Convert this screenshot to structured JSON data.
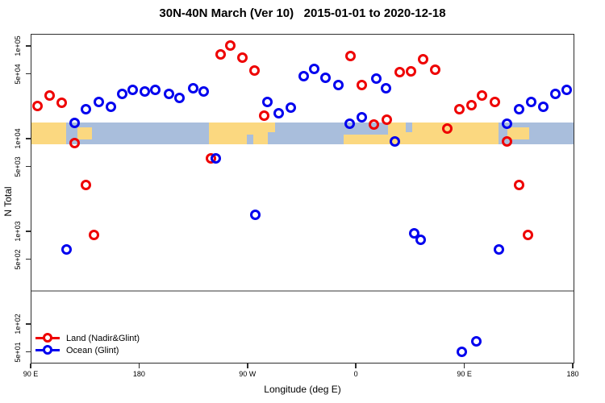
{
  "title": "30N-40N March (Ver 10)   2015-01-01 to 2020-12-18",
  "axes": {
    "xlabel": "Longitude (deg E)",
    "ylabel": "N Total"
  },
  "legend": {
    "items": [
      {
        "label": "Land (Nadir&Glint)",
        "color": "#ee0000"
      },
      {
        "label": "Ocean (Glint)",
        "color": "#0000ee"
      }
    ]
  },
  "chart_data": {
    "type": "scatter",
    "title": "30N-40N March (Ver 10)   2015-01-01 to 2020-12-18",
    "xlabel": "Longitude (deg E)",
    "ylabel": "N Total",
    "x_axis": {
      "note": "axis spans 450 deg of longitude starting at 90E, wrapping east: 90E>180>90W>0>90E>180",
      "span_deg": 450,
      "ticks": [
        {
          "t": 0,
          "label": "90 E"
        },
        {
          "t": 90,
          "label": "180"
        },
        {
          "t": 180,
          "label": "90 W"
        },
        {
          "t": 270,
          "label": "0"
        },
        {
          "t": 360,
          "label": "90 E"
        },
        {
          "t": 450,
          "label": "180"
        }
      ]
    },
    "y_axis": {
      "scale": "log10",
      "ticks": [
        {
          "value": 100000,
          "label": "1e+05"
        },
        {
          "value": 50000,
          "label": "5e+04"
        },
        {
          "value": 10000,
          "label": "1e+04"
        },
        {
          "value": 5000,
          "label": "5e+03"
        },
        {
          "value": 1000,
          "label": "1e+03"
        },
        {
          "value": 500,
          "label": "5e+02"
        },
        {
          "value": 100,
          "label": "1e+02"
        },
        {
          "value": 50,
          "label": "5e+01"
        }
      ]
    },
    "reference_line_value": 232,
    "map_band": {
      "value_top": 15100,
      "value_bottom": 8900,
      "ocean_color": "#a9bedc",
      "land_color": "#fbd880",
      "land_segments": [
        {
          "t0": 0,
          "t1": 29,
          "vpos": "full"
        },
        {
          "t0": 38,
          "t1": 50,
          "vpos": "mid"
        },
        {
          "t0": 147,
          "t1": 196,
          "vpos": "full"
        },
        {
          "t0": 196,
          "t1": 202,
          "vpos": "top"
        },
        {
          "t0": 259,
          "t1": 296,
          "vpos": "bottom"
        },
        {
          "t0": 296,
          "t1": 388,
          "vpos": "full"
        },
        {
          "t0": 395,
          "t1": 413,
          "vpos": "mid"
        }
      ],
      "ocean_patches": [
        {
          "t0": 179,
          "t1": 184,
          "vpos": "bottom"
        },
        {
          "t0": 311,
          "t1": 316,
          "vpos": "top"
        }
      ]
    },
    "series": [
      {
        "name": "Land (Nadir&Glint)",
        "color": "#ee0000",
        "points": [
          [
            5,
            23000
          ],
          [
            15,
            30000
          ],
          [
            25,
            25000
          ],
          [
            36,
            9200
          ],
          [
            45,
            3200
          ],
          [
            52,
            940
          ],
          [
            149,
            6300
          ],
          [
            157,
            82000
          ],
          [
            165,
            104000
          ],
          [
            175,
            77000
          ],
          [
            185,
            55000
          ],
          [
            193,
            18000
          ],
          [
            265,
            80000
          ],
          [
            274,
            39000
          ],
          [
            284,
            14600
          ],
          [
            295,
            16200
          ],
          [
            306,
            53000
          ],
          [
            315,
            54000
          ],
          [
            325,
            74000
          ],
          [
            335,
            57000
          ],
          [
            345,
            13200
          ],
          [
            355,
            21000
          ],
          [
            365,
            23200
          ],
          [
            374,
            30000
          ],
          [
            385,
            25600
          ],
          [
            395,
            9600
          ],
          [
            405,
            3200
          ],
          [
            412,
            940
          ]
        ]
      },
      {
        "name": "Ocean (Glint)",
        "color": "#0000ee",
        "points": [
          [
            29,
            650
          ],
          [
            36,
            15200
          ],
          [
            45,
            21000
          ],
          [
            56,
            25600
          ],
          [
            66,
            22300
          ],
          [
            75,
            30700
          ],
          [
            84,
            34600
          ],
          [
            94,
            32600
          ],
          [
            103,
            34600
          ],
          [
            114,
            31300
          ],
          [
            123,
            28300
          ],
          [
            134,
            36000
          ],
          [
            143,
            32600
          ],
          [
            153,
            6300
          ],
          [
            186,
            1550
          ],
          [
            196,
            25600
          ],
          [
            205,
            19000
          ],
          [
            215,
            22000
          ],
          [
            226,
            48600
          ],
          [
            235,
            58200
          ],
          [
            244,
            46700
          ],
          [
            255,
            39000
          ],
          [
            264,
            14800
          ],
          [
            274,
            17500
          ],
          [
            286,
            45800
          ],
          [
            294,
            36000
          ],
          [
            302,
            9600
          ],
          [
            318,
            980
          ],
          [
            323,
            820
          ],
          [
            357,
            51
          ],
          [
            369,
            67
          ],
          [
            388,
            650
          ],
          [
            395,
            14800
          ],
          [
            405,
            21000
          ],
          [
            415,
            25600
          ],
          [
            425,
            22300
          ],
          [
            435,
            31300
          ],
          [
            444,
            34200
          ]
        ]
      }
    ]
  }
}
